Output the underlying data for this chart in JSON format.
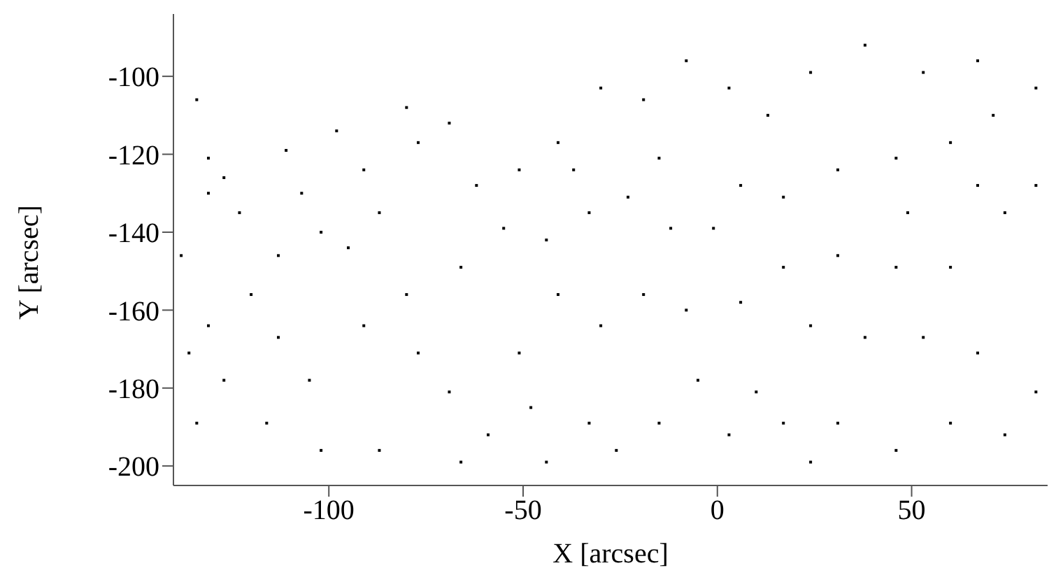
{
  "chart_data": {
    "type": "scatter",
    "xlabel": "X [arcsec]",
    "ylabel": "Y [arcsec]",
    "x": [
      -134,
      -131,
      -127,
      -123,
      -131,
      -111,
      -107,
      -98,
      -91,
      -80,
      -77,
      -69,
      -62,
      -87,
      -95,
      -102,
      -113,
      -120,
      -131,
      -127,
      -134,
      -113,
      -105,
      -91,
      -80,
      -77,
      -66,
      -69,
      -59,
      -48,
      -44,
      -33,
      -26,
      -15,
      -5,
      3,
      10,
      17,
      31,
      46,
      60,
      74,
      82,
      67,
      53,
      38,
      24,
      17,
      6,
      -8,
      -19,
      -30,
      -41,
      -51,
      -55,
      -44,
      -33,
      -23,
      -12,
      -1,
      6,
      17,
      31,
      46,
      60,
      71,
      82,
      67,
      53,
      38,
      24,
      13,
      3,
      -8,
      -19,
      -30,
      -41,
      -51,
      31,
      46,
      60,
      74,
      82,
      67,
      49,
      -66,
      -87,
      -102,
      -116,
      -138,
      -136,
      24,
      -15,
      -37
    ],
    "values": [
      -106,
      -121,
      -126,
      -135,
      -130,
      -119,
      -130,
      -114,
      -124,
      -108,
      -117,
      -112,
      -128,
      -135,
      -144,
      -140,
      -146,
      -156,
      -164,
      -178,
      -189,
      -167,
      -178,
      -164,
      -156,
      -171,
      -149,
      -181,
      -192,
      -185,
      -199,
      -189,
      -196,
      -189,
      -178,
      -192,
      -181,
      -189,
      -189,
      -196,
      -189,
      -192,
      -181,
      -171,
      -167,
      -167,
      -164,
      -149,
      -158,
      -160,
      -156,
      -164,
      -156,
      -171,
      -139,
      -142,
      -135,
      -131,
      -139,
      -139,
      -128,
      -131,
      -124,
      -121,
      -117,
      -110,
      -103,
      -96,
      -99,
      -92,
      -99,
      -110,
      -103,
      -96,
      -106,
      -103,
      -117,
      -124,
      -146,
      -149,
      -149,
      -135,
      -128,
      -128,
      -135,
      -199,
      -196,
      -196,
      -189,
      -146,
      -171,
      -199,
      -121,
      -124
    ],
    "color": "#000000",
    "marker": "square",
    "xlim": [
      -140,
      85
    ],
    "xticks": [
      -100,
      -50,
      0,
      50
    ],
    "ylim": [
      -205,
      -84
    ],
    "yticks": [
      -200,
      -180,
      -160,
      -140,
      -120,
      -100
    ],
    "grid": false,
    "legend": false
  }
}
